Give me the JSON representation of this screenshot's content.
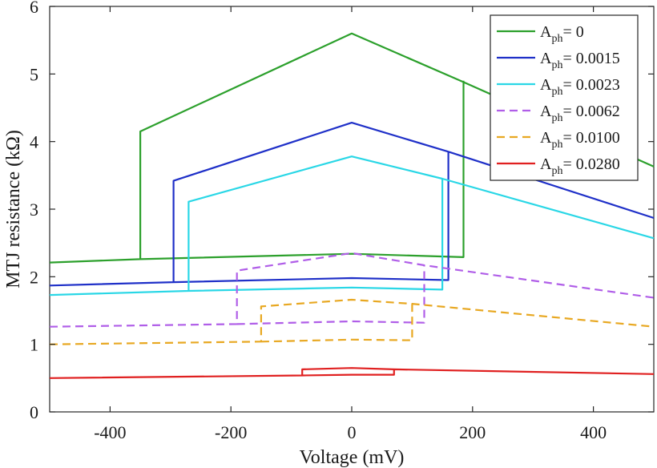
{
  "chart_data": {
    "type": "line",
    "xlabel": "Voltage (mV)",
    "ylabel": "MTJ resistance (kΩ)",
    "xlim": [
      -500,
      500
    ],
    "ylim": [
      0,
      6
    ],
    "xticks": [
      -400,
      -200,
      0,
      200,
      400
    ],
    "yticks": [
      0,
      1,
      2,
      3,
      4,
      5,
      6
    ],
    "xtick_labels": [
      "-400",
      "-200",
      "0",
      "200",
      "400"
    ],
    "ytick_labels": [
      "0",
      "1",
      "2",
      "3",
      "4",
      "5",
      "6"
    ],
    "grid": false,
    "legend_position": "top-right",
    "series": [
      {
        "name_main": "A",
        "name_sub": "ph",
        "name_value": "= 0",
        "color": "#2ca02c",
        "dash": "solid",
        "points": [
          [
            -500,
            2.21
          ],
          [
            -350,
            2.26
          ],
          [
            -350,
            4.15
          ],
          [
            0,
            5.6
          ],
          [
            180,
            4.9
          ],
          [
            500,
            3.63
          ],
          null,
          [
            -350,
            2.26
          ],
          [
            0,
            2.34
          ],
          [
            185,
            2.29
          ],
          [
            185,
            4.9
          ]
        ]
      },
      {
        "name_main": "A",
        "name_sub": "ph",
        "name_value": "= 0.0015",
        "color": "#1f30c8",
        "dash": "solid",
        "points": [
          [
            -500,
            1.87
          ],
          [
            -295,
            1.92
          ],
          [
            -295,
            3.42
          ],
          [
            0,
            4.28
          ],
          [
            160,
            3.85
          ],
          [
            500,
            2.87
          ],
          null,
          [
            -295,
            1.92
          ],
          [
            0,
            1.98
          ],
          [
            160,
            1.95
          ],
          [
            160,
            3.85
          ]
        ]
      },
      {
        "name_main": "A",
        "name_sub": "ph",
        "name_value": "= 0.0023",
        "color": "#2ad7e6",
        "dash": "solid",
        "points": [
          [
            -500,
            1.73
          ],
          [
            -270,
            1.79
          ],
          [
            -270,
            3.11
          ],
          [
            0,
            3.78
          ],
          [
            150,
            3.45
          ],
          [
            500,
            2.57
          ],
          null,
          [
            -270,
            1.79
          ],
          [
            0,
            1.84
          ],
          [
            150,
            1.81
          ],
          [
            150,
            3.45
          ]
        ]
      },
      {
        "name_main": "A",
        "name_sub": "ph",
        "name_value": "= 0.0062",
        "color": "#b05ee8",
        "dash": "dashed",
        "points": [
          [
            -500,
            1.26
          ],
          [
            -190,
            1.3
          ],
          [
            -190,
            2.09
          ],
          [
            0,
            2.35
          ],
          [
            120,
            2.17
          ],
          [
            500,
            1.69
          ],
          null,
          [
            -190,
            1.3
          ],
          [
            0,
            1.34
          ],
          [
            120,
            1.32
          ],
          [
            120,
            2.17
          ]
        ]
      },
      {
        "name_main": "A",
        "name_sub": "ph",
        "name_value": "= 0.0100",
        "color": "#e8a822",
        "dash": "dashed",
        "points": [
          [
            -500,
            1.0
          ],
          [
            -150,
            1.04
          ],
          [
            -150,
            1.56
          ],
          [
            0,
            1.66
          ],
          [
            100,
            1.6
          ],
          [
            500,
            1.26
          ],
          null,
          [
            -150,
            1.04
          ],
          [
            0,
            1.07
          ],
          [
            100,
            1.06
          ],
          [
            100,
            1.6
          ]
        ]
      },
      {
        "name_main": "A",
        "name_sub": "ph",
        "name_value": "= 0.0280",
        "color": "#e02020",
        "dash": "solid",
        "points": [
          [
            -500,
            0.5
          ],
          [
            -82,
            0.54
          ],
          [
            -82,
            0.63
          ],
          [
            0,
            0.65
          ],
          [
            70,
            0.63
          ],
          [
            500,
            0.56
          ],
          null,
          [
            -82,
            0.54
          ],
          [
            0,
            0.55
          ],
          [
            70,
            0.55
          ],
          [
            70,
            0.63
          ]
        ]
      }
    ]
  }
}
